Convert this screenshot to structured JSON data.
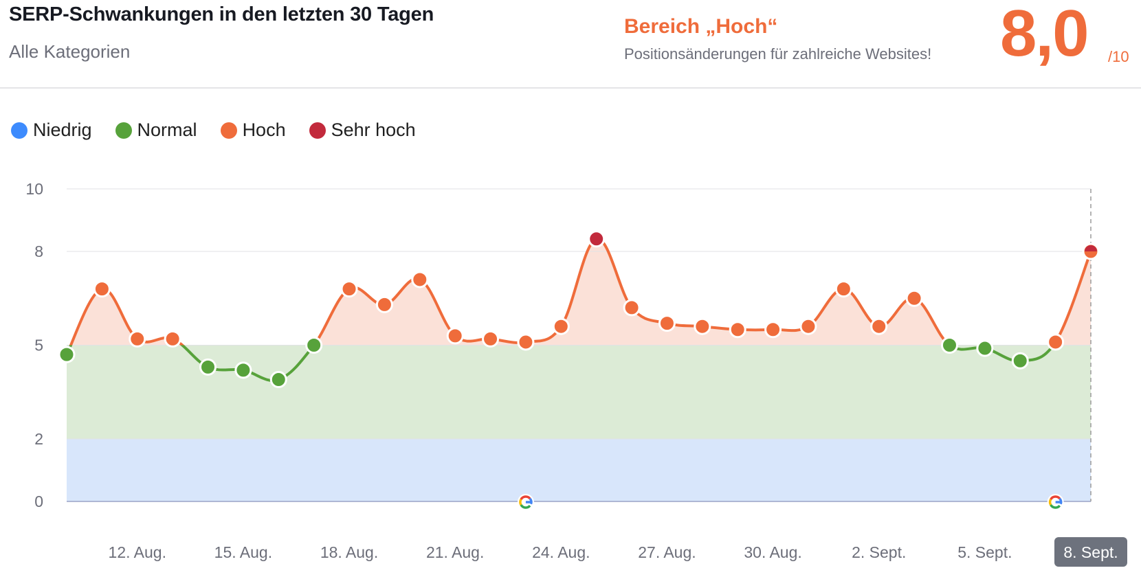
{
  "header": {
    "title": "SERP-Schwankungen in den letzten 30 Tagen",
    "subtitle": "Alle Kategorien",
    "range_title": "Bereich „Hoch“",
    "range_description": "Positionsänderungen für zahlreiche Websites!",
    "score": "8,0",
    "score_max": "/10"
  },
  "legend": [
    {
      "label": "Niedrig",
      "color": "#3d8bfd"
    },
    {
      "label": "Normal",
      "color": "#57a23b"
    },
    {
      "label": "Hoch",
      "color": "#ef6c3b"
    },
    {
      "label": "Sehr hoch",
      "color": "#c22a3c"
    }
  ],
  "chart_data": {
    "type": "area",
    "ylim": [
      0,
      10
    ],
    "y_ticks": [
      0,
      2,
      5,
      8,
      10
    ],
    "grid": true,
    "bands": [
      {
        "name": "Niedrig",
        "from": 0,
        "to": 2,
        "color": "#d8e6fb"
      },
      {
        "name": "Normal",
        "from": 2,
        "to": 5,
        "color": "#dcebd6"
      },
      {
        "name": "Hoch",
        "from": 5,
        "to": 8,
        "color": "#fbe1d8"
      },
      {
        "name": "Sehr hoch",
        "from": 8,
        "to": 10,
        "color": "#fbe1d8"
      }
    ],
    "x_tick_labels": [
      "12. Aug.",
      "15. Aug.",
      "18. Aug.",
      "21. Aug.",
      "24. Aug.",
      "27. Aug.",
      "30. Aug.",
      "2. Sept.",
      "5. Sept.",
      "8. Sept."
    ],
    "x_tick_indices": [
      2,
      5,
      8,
      11,
      14,
      17,
      20,
      23,
      26,
      29
    ],
    "active_x_label": "8. Sept.",
    "series": [
      {
        "values": [
          4.7,
          6.8,
          5.2,
          5.2,
          4.3,
          4.2,
          3.9,
          5.0,
          6.8,
          6.3,
          7.1,
          5.3,
          5.2,
          5.1,
          5.6,
          8.4,
          6.2,
          5.7,
          5.6,
          5.5,
          5.5,
          5.6,
          6.8,
          5.6,
          6.5,
          5.0,
          4.9,
          4.5,
          5.1,
          8.0
        ]
      }
    ],
    "google_update_markers": [
      13,
      28
    ],
    "google_marker_icon": "google-g-icon"
  }
}
